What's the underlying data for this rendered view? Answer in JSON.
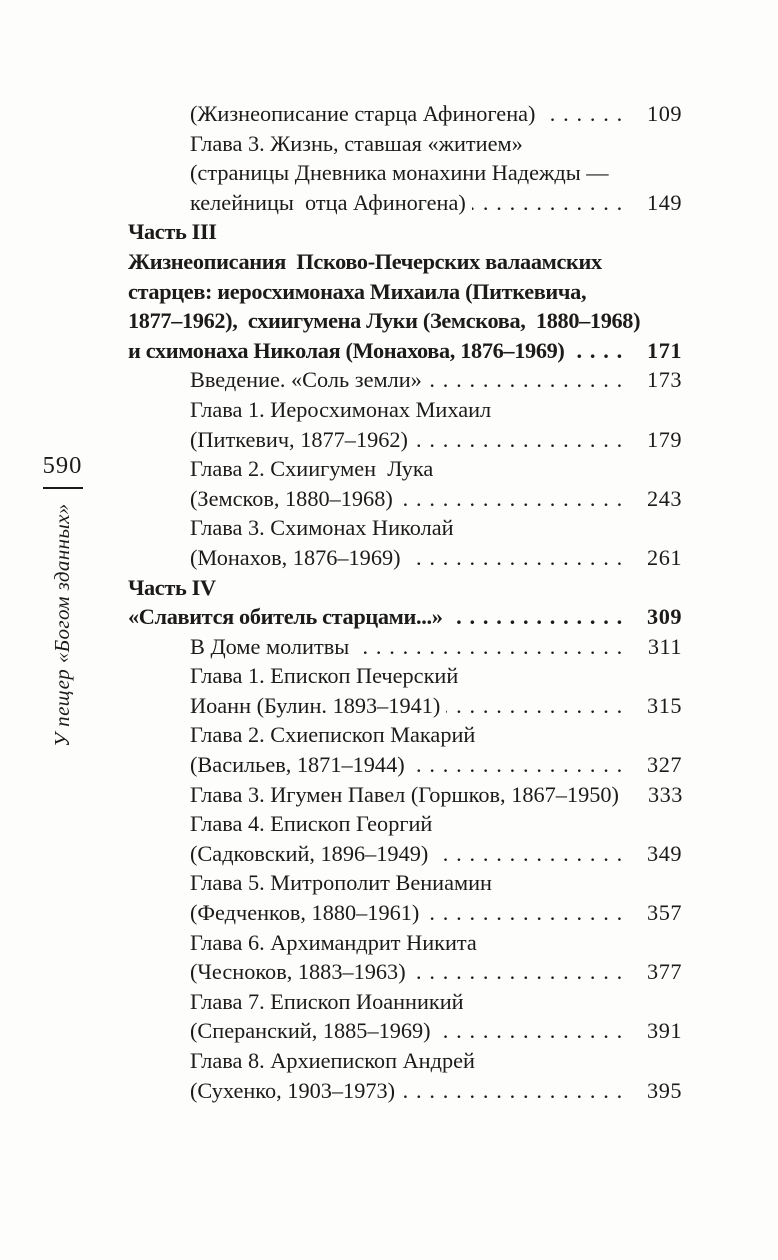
{
  "page": {
    "background_color": "#fdfdfc",
    "text_color": "#1d1b19"
  },
  "margin": {
    "folio_number": "590",
    "running_title": "У пещер «Богом зданных»"
  },
  "toc": {
    "lines": [
      {
        "text": "(Жизнеописание старца Афиногена)",
        "page": "109",
        "bold": false,
        "indent": 1
      },
      {
        "text": "Глава 3. Жизнь, ставшая «житием»",
        "bold": false,
        "indent": 1
      },
      {
        "text": "(страницы Дневника монахини Надежды —",
        "bold": false,
        "indent": 1
      },
      {
        "text": "келейницы  отца Афиногена)",
        "page": "149",
        "bold": false,
        "indent": 1
      },
      {
        "text": "Часть III",
        "bold": true,
        "indent": 0
      },
      {
        "text": "Жизнеописания  Псково-Печерских валаамских",
        "bold": true,
        "indent": 0
      },
      {
        "text": "старцев: иеросхимонаха Михаила (Питкевича,",
        "bold": true,
        "indent": 0
      },
      {
        "text": "1877–1962),  схиигумена Луки (Земскова,  1880–1968)",
        "bold": true,
        "indent": 0
      },
      {
        "text": "и схимонаха Николая (Монахова, 1876–1969)",
        "page": "171",
        "bold": true,
        "indent": 0
      },
      {
        "text": "Введение. «Соль земли»",
        "page": "173",
        "bold": false,
        "indent": 1
      },
      {
        "text": "Глава 1. Иеросхимонах Михаил",
        "bold": false,
        "indent": 1
      },
      {
        "text": "(Питкевич, 1877–1962)",
        "page": "179",
        "bold": false,
        "indent": 1
      },
      {
        "text": "Глава 2. Схиигумен  Лука",
        "bold": false,
        "indent": 1
      },
      {
        "text": "(Земсков, 1880–1968)",
        "page": "243",
        "bold": false,
        "indent": 1
      },
      {
        "text": "Глава 3. Схимонах Николай",
        "bold": false,
        "indent": 1
      },
      {
        "text": "(Монахов, 1876–1969)",
        "page": "261",
        "bold": false,
        "indent": 1
      },
      {
        "text": "Часть IV",
        "bold": true,
        "indent": 0
      },
      {
        "text": "«Славится обитель старцами...»",
        "page": "309",
        "bold": true,
        "indent": 0
      },
      {
        "text": "В Доме молитвы",
        "page": "311",
        "bold": false,
        "indent": 1
      },
      {
        "text": "Глава 1. Епископ Печерский",
        "bold": false,
        "indent": 1
      },
      {
        "text": "Иоанн (Булин. 1893–1941)",
        "page": "315",
        "bold": false,
        "indent": 1
      },
      {
        "text": "Глава 2. Схиепископ Макарий",
        "bold": false,
        "indent": 1
      },
      {
        "text": "(Васильев, 1871–1944)",
        "page": "327",
        "bold": false,
        "indent": 1
      },
      {
        "text": "Глава 3. Игумен Павел (Горшков, 1867–1950)",
        "page": "333",
        "bold": false,
        "indent": 1
      },
      {
        "text": "Глава 4. Епископ Георгий",
        "bold": false,
        "indent": 1
      },
      {
        "text": "(Садковский, 1896–1949)",
        "page": "349",
        "bold": false,
        "indent": 1
      },
      {
        "text": "Глава 5. Митрополит Вениамин",
        "bold": false,
        "indent": 1
      },
      {
        "text": "(Федченков, 1880–1961)",
        "page": "357",
        "bold": false,
        "indent": 1
      },
      {
        "text": "Глава 6. Архимандрит Никита",
        "bold": false,
        "indent": 1
      },
      {
        "text": "(Чесноков, 1883–1963)",
        "page": "377",
        "bold": false,
        "indent": 1
      },
      {
        "text": "Глава 7. Епископ Иоанникий",
        "bold": false,
        "indent": 1
      },
      {
        "text": "(Сперанский, 1885–1969)",
        "page": "391",
        "bold": false,
        "indent": 1
      },
      {
        "text": "Глава 8. Архиепископ Андрей",
        "bold": false,
        "indent": 1
      },
      {
        "text": "(Сухенко, 1903–1973)",
        "page": "395",
        "bold": false,
        "indent": 1
      }
    ]
  }
}
